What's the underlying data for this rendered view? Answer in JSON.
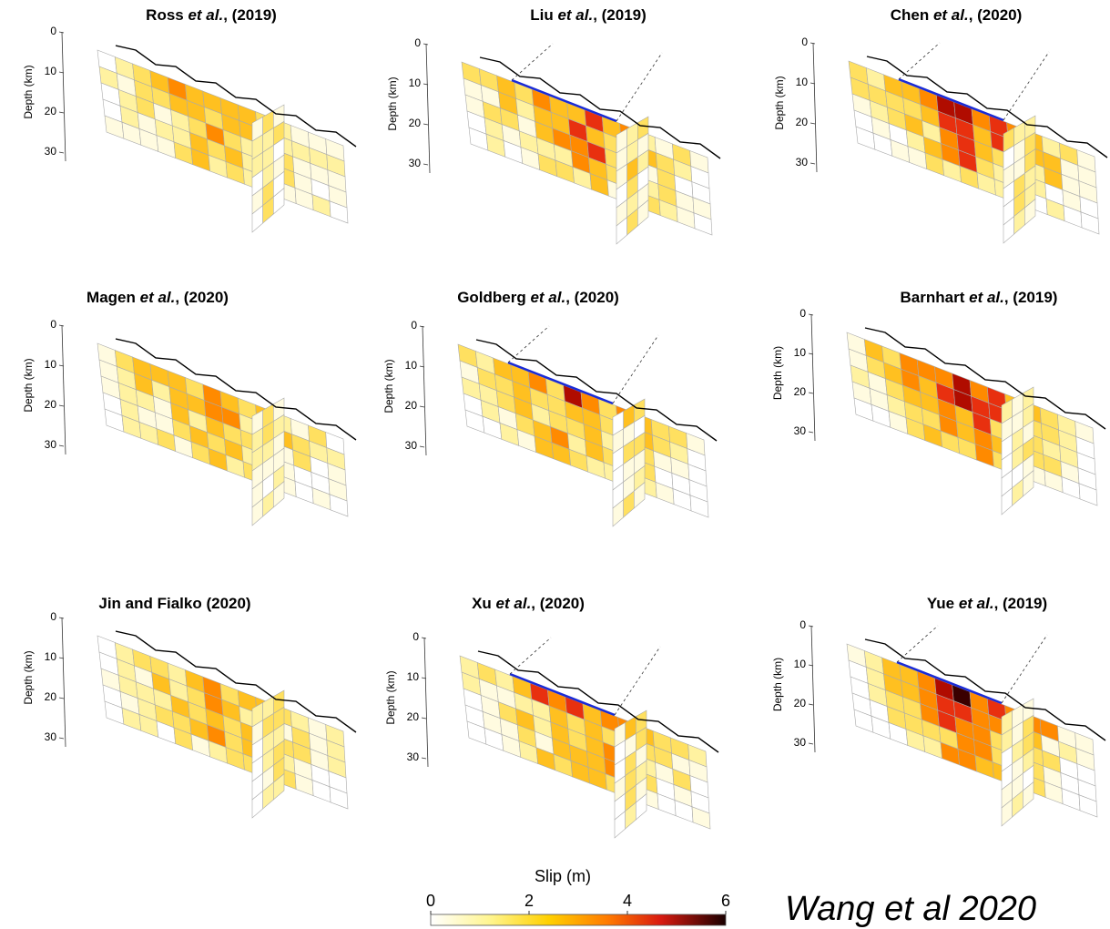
{
  "panels": [
    {
      "title": [
        {
          "text": "Ross "
        },
        {
          "text": "et al.",
          "italic": true
        },
        {
          "text": ", (2019)"
        }
      ]
    },
    {
      "title": [
        {
          "text": "Liu "
        },
        {
          "text": "et al.",
          "italic": true
        },
        {
          "text": ", (2019)"
        }
      ]
    },
    {
      "title": [
        {
          "text": "Chen "
        },
        {
          "text": "et al.",
          "italic": true
        },
        {
          "text": ", (2020)"
        }
      ]
    },
    {
      "title": [
        {
          "text": "Magen "
        },
        {
          "text": "et al.",
          "italic": true
        },
        {
          "text": ", (2020)"
        }
      ]
    },
    {
      "title": [
        {
          "text": "Goldberg "
        },
        {
          "text": "et al.",
          "italic": true
        },
        {
          "text": ", (2020)"
        }
      ]
    },
    {
      "title": [
        {
          "text": "Barnhart "
        },
        {
          "text": "et al.",
          "italic": true
        },
        {
          "text": ", (2019)"
        }
      ]
    },
    {
      "title": [
        {
          "text": "Jin and Fialko (2020)"
        }
      ]
    },
    {
      "title": [
        {
          "text": "Xu "
        },
        {
          "text": "et al.",
          "italic": true
        },
        {
          "text": ", (2020)"
        }
      ]
    },
    {
      "title": [
        {
          "text": "Yue "
        },
        {
          "text": "et al.",
          "italic": true
        },
        {
          "text": ", (2019)"
        }
      ]
    }
  ],
  "depth_axis": {
    "label": "Depth (km)",
    "ticks": [
      0,
      10,
      20,
      30
    ]
  },
  "colorbar": {
    "label": "Slip (m)",
    "lim": [
      0,
      6
    ],
    "ticks": [
      0,
      2,
      4,
      6
    ]
  },
  "credit": "Wang et al 2020"
}
